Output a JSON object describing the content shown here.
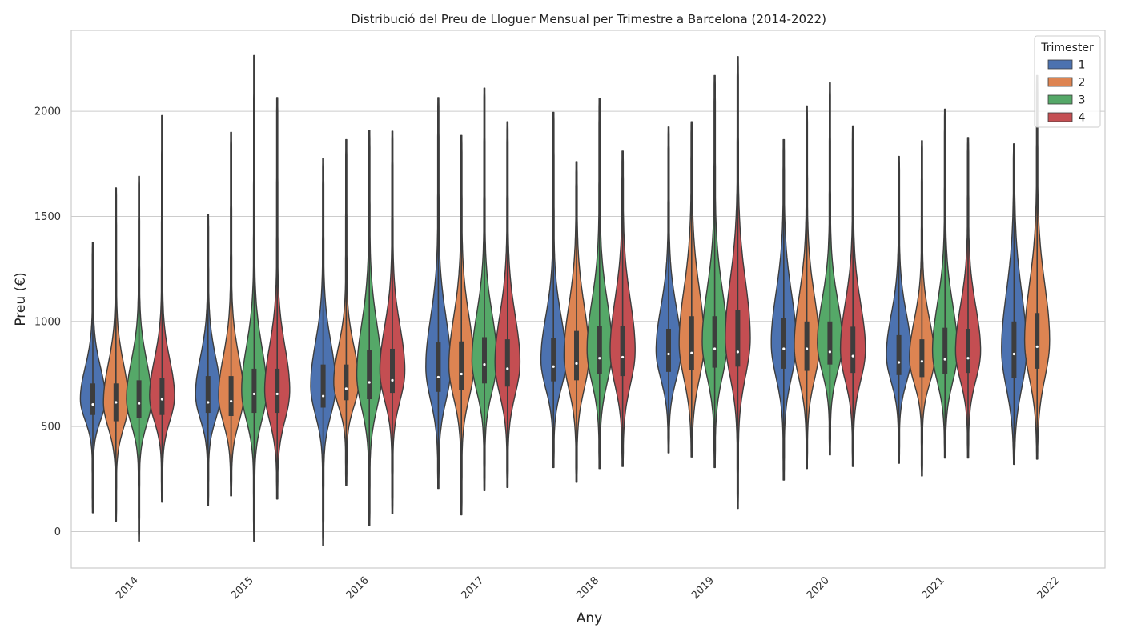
{
  "chart_data": {
    "type": "violin",
    "title": "Distribució del Preu de Lloguer Mensual per Trimestre a Barcelona (2014-2022)",
    "xlabel": "Any",
    "ylabel": "Preu (€)",
    "categories": [
      "2014",
      "2015",
      "2016",
      "2017",
      "2018",
      "2019",
      "2020",
      "2021",
      "2022"
    ],
    "ylim": [
      -175,
      2390
    ],
    "yticks": [
      0,
      500,
      1000,
      1500,
      2000
    ],
    "grid": "horizontal",
    "legend": {
      "title": "Trimester",
      "position": "top-right"
    },
    "series": [
      {
        "name": "1",
        "color": "#4c72b0",
        "min": [
          90,
          125,
          -65,
          205,
          305,
          375,
          245,
          325,
          320
        ],
        "max": [
          1375,
          1510,
          1775,
          2065,
          1995,
          1925,
          1865,
          1785,
          1845
        ],
        "q1": [
          555,
          565,
          590,
          665,
          715,
          760,
          775,
          745,
          730
        ],
        "median": [
          605,
          615,
          645,
          735,
          785,
          845,
          870,
          805,
          845
        ],
        "q3": [
          705,
          740,
          795,
          900,
          920,
          965,
          1015,
          935,
          1000
        ]
      },
      {
        "name": "2",
        "color": "#dd8452",
        "min": [
          50,
          170,
          220,
          80,
          235,
          355,
          300,
          265,
          345
        ],
        "max": [
          1635,
          1900,
          1865,
          1885,
          1760,
          1950,
          2025,
          1860,
          2170
        ],
        "q1": [
          525,
          550,
          625,
          675,
          720,
          770,
          765,
          735,
          775
        ],
        "median": [
          615,
          620,
          680,
          750,
          800,
          850,
          870,
          810,
          880
        ],
        "q3": [
          705,
          740,
          795,
          905,
          955,
          1025,
          1000,
          915,
          1040
        ]
      },
      {
        "name": "3",
        "color": "#55a868",
        "min": [
          -45,
          -45,
          30,
          195,
          300,
          305,
          365,
          350
        ],
        "max": [
          1690,
          2265,
          1910,
          2110,
          2060,
          2170,
          2135,
          2010
        ],
        "q1": [
          540,
          565,
          630,
          705,
          750,
          780,
          795,
          750
        ],
        "median": [
          610,
          655,
          710,
          795,
          825,
          870,
          855,
          820
        ],
        "q3": [
          720,
          775,
          865,
          925,
          980,
          1025,
          1000,
          970
        ]
      },
      {
        "name": "4",
        "color": "#c44e52",
        "min": [
          140,
          155,
          85,
          210,
          310,
          110,
          310,
          350
        ],
        "max": [
          1980,
          2065,
          1905,
          1950,
          1810,
          2260,
          1930,
          1875
        ],
        "q1": [
          555,
          565,
          660,
          690,
          740,
          785,
          755,
          755
        ],
        "median": [
          630,
          655,
          720,
          775,
          830,
          855,
          835,
          825
        ],
        "q3": [
          730,
          775,
          870,
          915,
          980,
          1055,
          975,
          965
        ]
      }
    ]
  }
}
